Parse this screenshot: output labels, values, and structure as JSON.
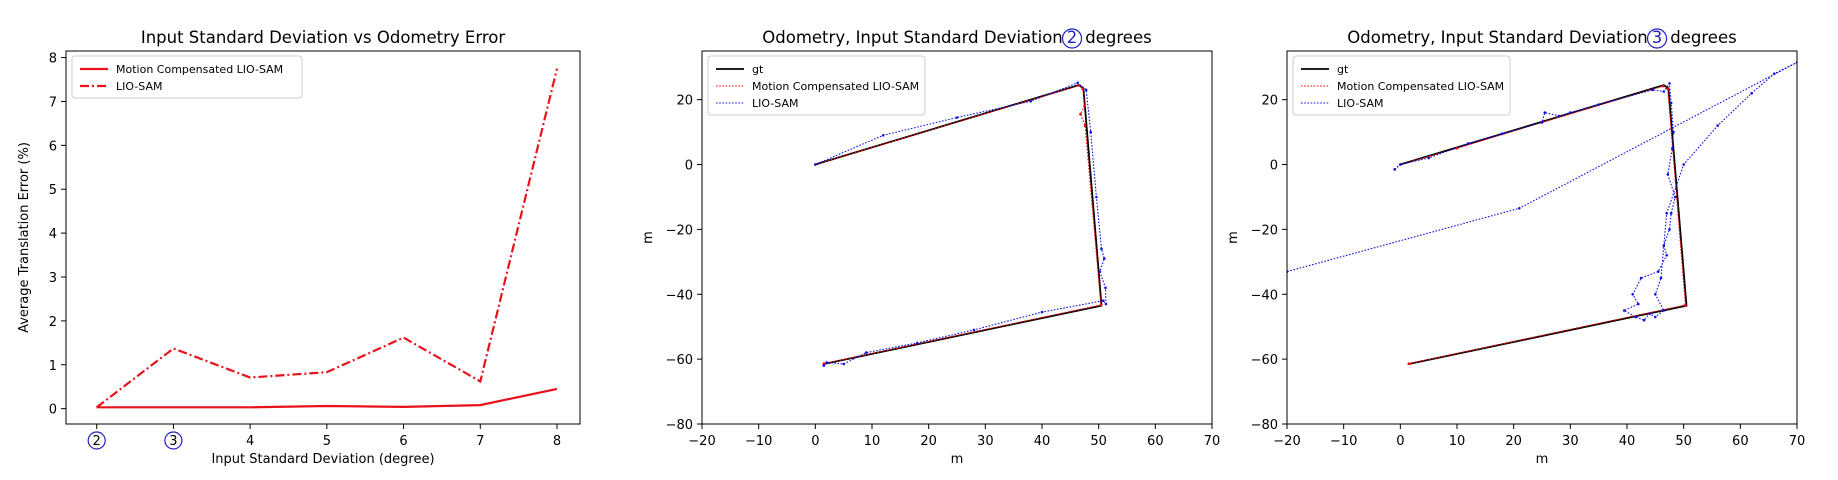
{
  "chart_data": [
    {
      "type": "line",
      "title": "Input Standard Deviation vs Odometry Error",
      "xlabel": "Input Standard Deviation (degree)",
      "ylabel": "Average Translation Error (%)",
      "ylabel_color": "#e8121b",
      "xlim": [
        1.6,
        8.3
      ],
      "ylim": [
        -0.35,
        8.15
      ],
      "x_ticks": [
        "2",
        "3",
        "4",
        "5",
        "6",
        "7",
        "8"
      ],
      "circled_x_ticks": [
        "2",
        "3"
      ],
      "y_ticks": [
        "0",
        "1",
        "2",
        "3",
        "4",
        "5",
        "6",
        "7",
        "8"
      ],
      "grid": false,
      "legend_position": "top-left",
      "series": [
        {
          "name": "Motion Compensated LIO-SAM",
          "style": "solid",
          "color": "#e8121b",
          "x": [
            2,
            3,
            4,
            5,
            6,
            7,
            8
          ],
          "y": [
            0.03,
            0.03,
            0.03,
            0.06,
            0.04,
            0.08,
            0.45
          ]
        },
        {
          "name": "LIO-SAM",
          "style": "dashdot",
          "color": "#e8121b",
          "x": [
            2,
            3,
            4,
            5,
            6,
            7,
            8
          ],
          "y": [
            0.03,
            1.37,
            0.71,
            0.83,
            1.62,
            0.62,
            7.75
          ]
        }
      ]
    },
    {
      "type": "line",
      "title_before": "Odometry, Input Standard Deviation",
      "title_circled": "2",
      "title_after": "degrees",
      "xlabel": "m",
      "ylabel": "m",
      "xlim": [
        -20,
        70
      ],
      "ylim": [
        -80,
        35
      ],
      "x_ticks": [
        "−20",
        "−10",
        "0",
        "10",
        "20",
        "30",
        "40",
        "50",
        "60",
        "70"
      ],
      "y_ticks": [
        "−80",
        "−60",
        "−40",
        "−20",
        "0",
        "20"
      ],
      "grid": false,
      "legend_position": "top-left",
      "series": [
        {
          "name": "gt",
          "style": "solid",
          "color": "#000000",
          "x": [
            0,
            46.5,
            47.3,
            50.5,
            1.5
          ],
          "y": [
            0,
            24.5,
            23.5,
            -43.5,
            -61.5
          ]
        },
        {
          "name": "Motion Compensated LIO-SAM",
          "style": "dotted",
          "color": "#ff0000",
          "x": [
            0,
            46.6,
            47.2,
            47.5,
            46.8,
            47.6,
            50.4,
            1.5
          ],
          "y": [
            0,
            24.4,
            23.3,
            18,
            15.5,
            12,
            -43.3,
            -61.4
          ]
        },
        {
          "name": "LIO-SAM",
          "style": "dotted",
          "color": "#1010e0",
          "x": [
            0,
            12,
            25,
            38,
            46.3,
            47.8,
            48.6,
            49.6,
            50.5,
            51,
            50.2,
            51.2,
            51.3,
            50.8,
            40,
            28,
            18,
            9,
            5,
            2,
            1.5
          ],
          "y": [
            0,
            9,
            14.5,
            19.5,
            25.2,
            23,
            10,
            -10,
            -26,
            -29,
            -33,
            -38,
            -43,
            -42,
            -45.5,
            -51,
            -55,
            -58,
            -61.5,
            -61,
            -62
          ]
        }
      ]
    },
    {
      "type": "line",
      "title_before": "Odometry, Input Standard Deviation",
      "title_circled": "3",
      "title_after": "degrees",
      "xlabel": "m",
      "ylabel": "m",
      "xlim": [
        -20,
        70
      ],
      "ylim": [
        -80,
        35
      ],
      "x_ticks": [
        "−20",
        "−10",
        "0",
        "10",
        "20",
        "30",
        "40",
        "50",
        "60",
        "70"
      ],
      "y_ticks": [
        "−80",
        "−60",
        "−40",
        "−20",
        "0",
        "20"
      ],
      "grid": false,
      "legend_position": "top-left",
      "series": [
        {
          "name": "gt",
          "style": "solid",
          "color": "#000000",
          "x": [
            0,
            46.5,
            47.3,
            50.5,
            1.5
          ],
          "y": [
            0,
            24.5,
            23.5,
            -43.5,
            -61.5
          ]
        },
        {
          "name": "Motion Compensated LIO-SAM",
          "style": "dotted",
          "color": "#ff0000",
          "x": [
            -1,
            0,
            10,
            25,
            46.4,
            47.2,
            50.3,
            1.5
          ],
          "y": [
            -1.5,
            0,
            5,
            13,
            24.2,
            23.3,
            -43.3,
            -61.4
          ]
        },
        {
          "name": "LIO-SAM",
          "style": "dotted",
          "color": "#1010e0",
          "x": [
            -1,
            0,
            5,
            12,
            18,
            25,
            25.5,
            28,
            30,
            35,
            44.5,
            46.5,
            47.5,
            47.8,
            48.2,
            48,
            47.2,
            48.5,
            47.8,
            47.5,
            46.5,
            47,
            45.5,
            42.5,
            41,
            42,
            39.5,
            41.5,
            43,
            44,
            45,
            46.5,
            45,
            46,
            47,
            50,
            56,
            62,
            66,
            70,
            21,
            -20
          ],
          "y": [
            -1.5,
            0,
            2,
            6.5,
            9.5,
            13,
            16,
            15,
            16,
            18.5,
            23,
            22.5,
            25,
            19,
            10,
            5,
            -3,
            -10,
            -15,
            -20,
            -25,
            -28,
            -33,
            -35,
            -40,
            -43,
            -45,
            -47,
            -48,
            -46,
            -47,
            -45,
            -40,
            -35,
            -15,
            0,
            12,
            22,
            28,
            31.5,
            -13.5,
            -33
          ]
        }
      ]
    }
  ]
}
